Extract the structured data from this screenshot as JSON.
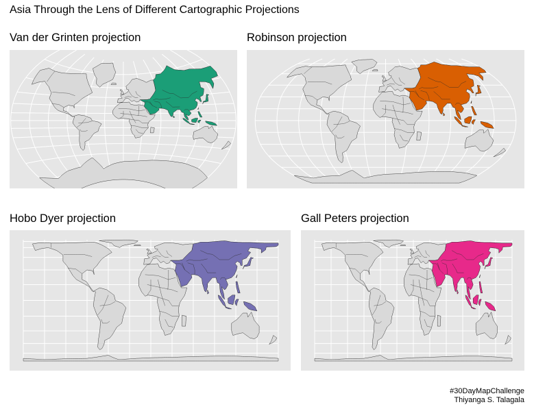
{
  "title": "Asia Through the Lens of Different Cartographic Projections",
  "highlight_region": "Asia",
  "panels": [
    {
      "id": "vdg",
      "label": "Van der Grinten projection",
      "projection": "van-der-grinten",
      "fill": "#1b9e77"
    },
    {
      "id": "rob",
      "label": "Robinson projection",
      "projection": "robinson",
      "fill": "#d95f02"
    },
    {
      "id": "hobo",
      "label": "Hobo Dyer projection",
      "projection": "hobo-dyer",
      "fill": "#7570b3"
    },
    {
      "id": "gall",
      "label": "Gall Peters projection",
      "projection": "gall-peters",
      "fill": "#e7298a"
    }
  ],
  "colors": {
    "panel_background": "#e6e6e6",
    "land": "#d9d9d9",
    "border": "#3a3a3a",
    "graticule": "#ffffff"
  },
  "caption": {
    "line1": "#30DayMapChallenge",
    "line2": "Thiyanga S. Talagala"
  }
}
